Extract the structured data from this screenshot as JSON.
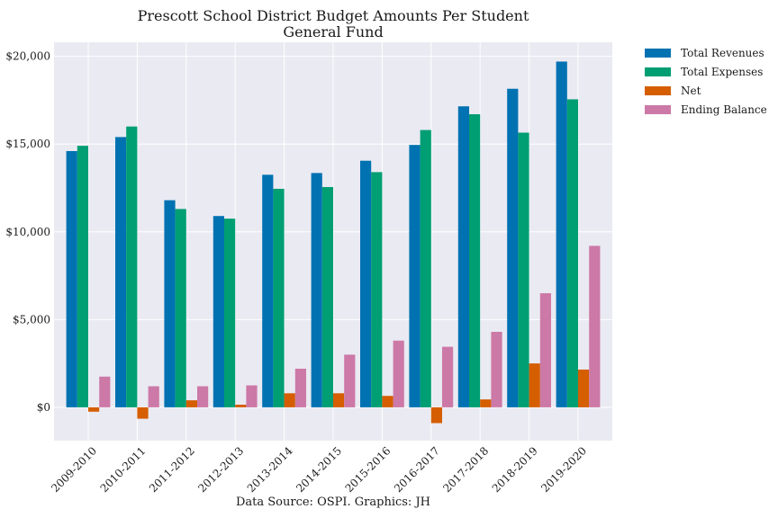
{
  "chart_data": {
    "type": "bar",
    "title_lines": [
      "Prescott School District Budget Amounts Per Student",
      "General Fund"
    ],
    "caption": "Data Source: OSPI. Graphics: JH",
    "xlabel": "",
    "ylabel": "",
    "categories": [
      "2009-2010",
      "2010-2011",
      "2011-2012",
      "2012-2013",
      "2013-2014",
      "2014-2015",
      "2015-2016",
      "2016-2017",
      "2017-2018",
      "2018-2019",
      "2019-2020"
    ],
    "ylim": [
      -1900,
      20800
    ],
    "yticks": [
      0,
      5000,
      10000,
      15000,
      20000
    ],
    "ytick_labels": [
      "$0",
      "$5,000",
      "$10,000",
      "$15,000",
      "$20,000"
    ],
    "grid": true,
    "legend_position": "outside-top-right",
    "series": [
      {
        "name": "Total Revenues",
        "color": "#0072B2",
        "values": [
          14600,
          15400,
          11800,
          10900,
          13250,
          13350,
          14050,
          14950,
          17150,
          18150,
          19700
        ]
      },
      {
        "name": "Total Expenses",
        "color": "#009E73",
        "values": [
          14900,
          16000,
          11300,
          10750,
          12450,
          12550,
          13400,
          15800,
          16700,
          15650,
          17550
        ]
      },
      {
        "name": "Net",
        "color": "#D55E00",
        "values": [
          -250,
          -650,
          400,
          150,
          800,
          800,
          650,
          -900,
          450,
          2500,
          2150
        ]
      },
      {
        "name": "Ending Balance",
        "color": "#CC79A7",
        "values": [
          1750,
          1200,
          1200,
          1250,
          2200,
          3000,
          3800,
          3450,
          4300,
          6500,
          9200
        ]
      }
    ]
  }
}
